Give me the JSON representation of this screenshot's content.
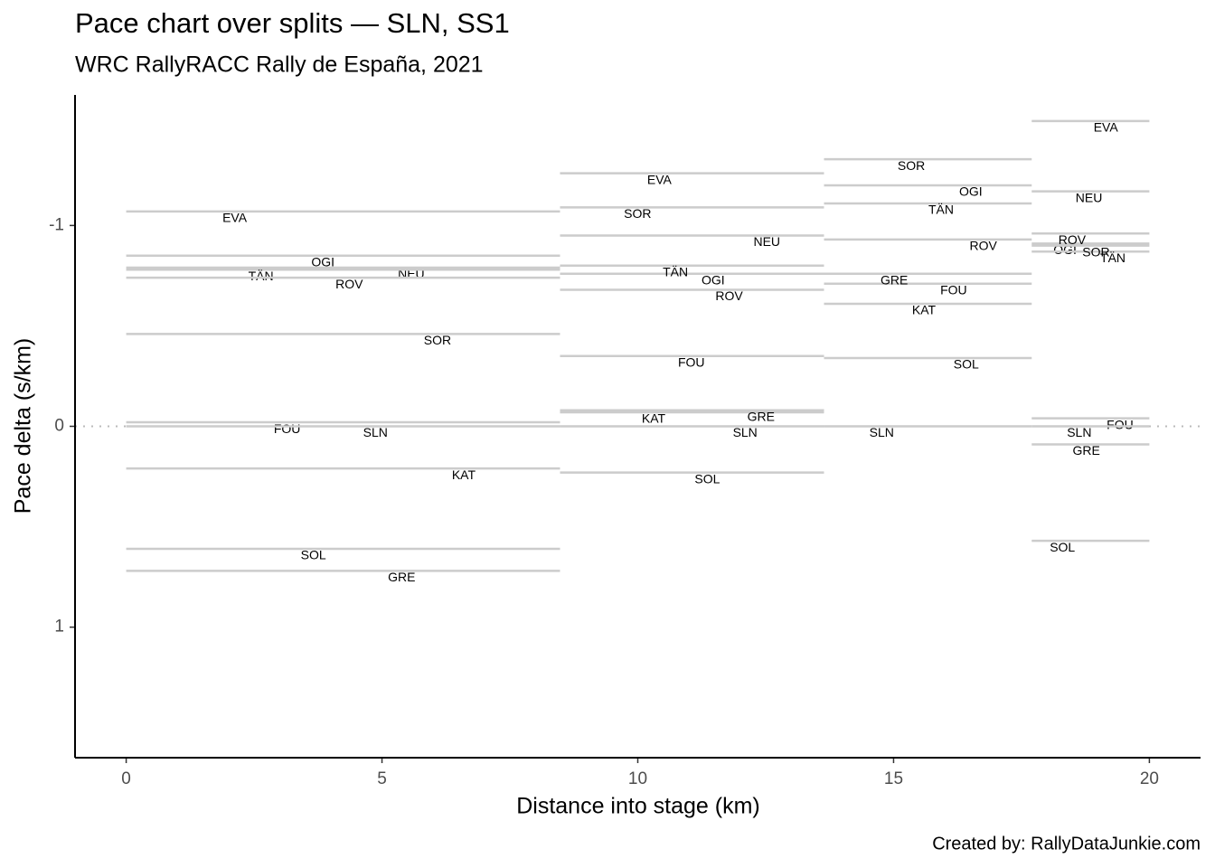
{
  "chart_data": {
    "type": "step-segments",
    "title": "Pace chart over splits — SLN, SS1",
    "subtitle": "WRC RallyRACC Rally de España, 2021",
    "xlabel": "Distance into stage (km)",
    "ylabel": "Pace delta (s/km)",
    "caption": "Created by: RallyDataJunkie.com",
    "split_edges": [
      0,
      8.48,
      13.64,
      17.7,
      20
    ],
    "color": "#cccccc",
    "xlim": [
      -1,
      21
    ],
    "xticks": [
      0,
      5,
      10,
      15,
      20
    ],
    "ylim": [
      -1.65,
      1.65
    ],
    "yticks": [
      -1,
      0,
      1
    ],
    "y_reversed": true,
    "series": [
      {
        "name": "EVA",
        "values": [
          -1.07,
          -1.26,
          null,
          -1.52
        ]
      },
      {
        "name": "OGI",
        "values": [
          -0.85,
          -0.76,
          -1.2,
          -0.91
        ]
      },
      {
        "name": "NEU",
        "values": [
          -0.79,
          -0.95,
          null,
          -1.17
        ]
      },
      {
        "name": "TÄN",
        "values": [
          -0.78,
          -0.8,
          -1.11,
          -0.87
        ]
      },
      {
        "name": "ROV",
        "values": [
          -0.74,
          -0.68,
          -0.93,
          -0.96
        ]
      },
      {
        "name": "SOR",
        "values": [
          -0.46,
          -1.09,
          -1.33,
          -0.9
        ]
      },
      {
        "name": "FOU",
        "values": [
          -0.02,
          -0.35,
          -0.71,
          -0.04
        ]
      },
      {
        "name": "SLN",
        "values": [
          0,
          0,
          0,
          0
        ]
      },
      {
        "name": "KAT",
        "values": [
          0.21,
          -0.07,
          -0.61,
          null
        ]
      },
      {
        "name": "SOL",
        "values": [
          0.61,
          0.23,
          -0.34,
          0.57
        ]
      },
      {
        "name": "GRE",
        "values": [
          0.72,
          -0.08,
          -0.76,
          0.09
        ]
      }
    ]
  }
}
